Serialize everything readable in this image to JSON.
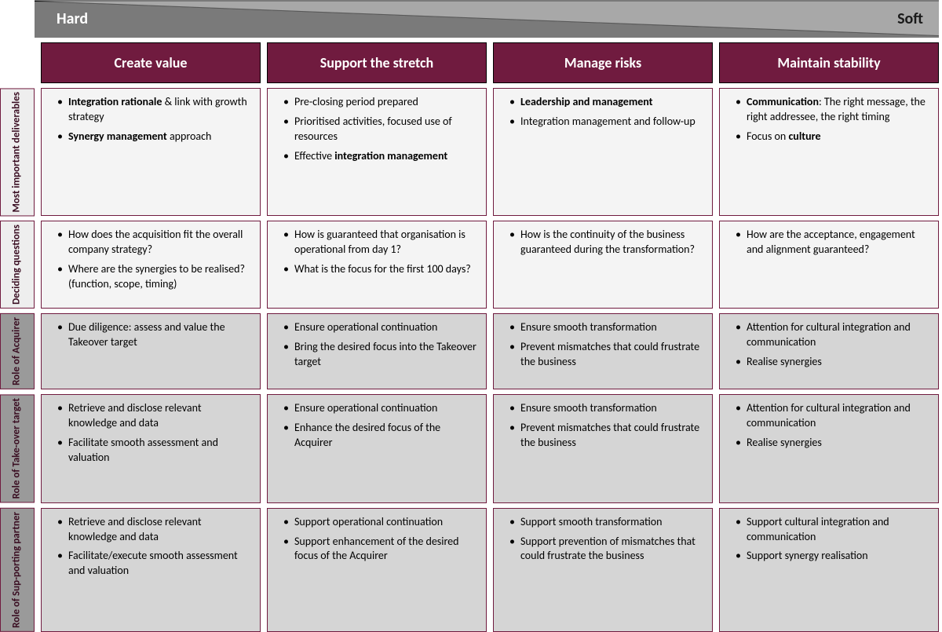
{
  "gradient": {
    "left_label": "Hard",
    "right_label": "Soft",
    "bg_color": "#7a7a7a",
    "line_color": "#000000"
  },
  "header_bg": "#701b3f",
  "header_text_color": "#ffffff",
  "row_label_bg_light": "#eeeeee",
  "row_label_bg_dark": "#9a9a9a",
  "row_label_text": "#3a0e22",
  "cell_light": "#f4f4f4",
  "cell_dark": "#d5d5d5",
  "columns": [
    {
      "title": "Create value"
    },
    {
      "title": "Support the stretch"
    },
    {
      "title": "Manage risks"
    },
    {
      "title": "Maintain stability"
    }
  ],
  "rows": [
    {
      "label": "Most important deliverables",
      "shade": "light",
      "cells": [
        [
          {
            "html": "<span class='bold'>Integration rationale</span> & link with growth strategy"
          },
          {
            "html": "<span class='bold'>Synergy management</span> approach"
          }
        ],
        [
          {
            "html": "Pre-closing period prepared"
          },
          {
            "html": "Prioritised activities, focused use of resources"
          },
          {
            "html": "Effective <span class='bold'>integration management</span>"
          }
        ],
        [
          {
            "html": "<span class='bold'>Leadership and management</span>"
          },
          {
            "html": "Integration management and follow-up"
          }
        ],
        [
          {
            "html": "<span class='bold'>Communication</span>: The right message, the right addressee, the right timing"
          },
          {
            "html": "Focus on <span class='bold'>culture</span>"
          }
        ]
      ]
    },
    {
      "label": "Deciding questions",
      "shade": "light",
      "cells": [
        [
          {
            "html": "How does the acquisition fit the overall company strategy?"
          },
          {
            "html": "Where are the synergies to be realised? (function, scope, timing)"
          }
        ],
        [
          {
            "html": "How is guaranteed that organisation is operational from day 1?"
          },
          {
            "html": "What is the focus for the first 100 days?"
          }
        ],
        [
          {
            "html": "How is the continuity of the business guaranteed during the transformation?"
          }
        ],
        [
          {
            "html": "How are the acceptance, engagement and alignment guaranteed?"
          }
        ]
      ]
    },
    {
      "label": "Role of Acquirer",
      "shade": "dark",
      "cells": [
        [
          {
            "html": "Due diligence: assess and value the Takeover target"
          }
        ],
        [
          {
            "html": "Ensure operational continuation"
          },
          {
            "html": "Bring the desired focus into the Takeover target"
          }
        ],
        [
          {
            "html": "Ensure smooth transformation"
          },
          {
            "html": "Prevent mismatches that could frustrate the business"
          }
        ],
        [
          {
            "html": "Attention for cultural integration and communication"
          },
          {
            "html": "Realise synergies"
          }
        ]
      ]
    },
    {
      "label": "Role of Take-over target",
      "shade": "dark",
      "cells": [
        [
          {
            "html": "Retrieve and disclose relevant knowledge and data"
          },
          {
            "html": "Facilitate smooth assessment and valuation"
          }
        ],
        [
          {
            "html": "Ensure operational continuation"
          },
          {
            "html": "Enhance the desired focus of the Acquirer"
          }
        ],
        [
          {
            "html": "Ensure smooth transformation"
          },
          {
            "html": "Prevent mismatches that could frustrate the business"
          }
        ],
        [
          {
            "html": "Attention for cultural integration and communication"
          },
          {
            "html": "Realise synergies"
          }
        ]
      ]
    },
    {
      "label": "Role of Sup-porting partner",
      "shade": "dark",
      "cells": [
        [
          {
            "html": "Retrieve and disclose relevant knowledge and data"
          },
          {
            "html": "Facilitate/execute smooth assessment and valuation"
          }
        ],
        [
          {
            "html": "Support operational continuation"
          },
          {
            "html": "Support enhancement of the desired focus of the Acquirer"
          }
        ],
        [
          {
            "html": "Support smooth transformation"
          },
          {
            "html": "Support prevention of mismatches that could frustrate the business"
          }
        ],
        [
          {
            "html": "Support cultural integration and communication"
          },
          {
            "html": "Support synergy realisation"
          }
        ]
      ]
    }
  ]
}
